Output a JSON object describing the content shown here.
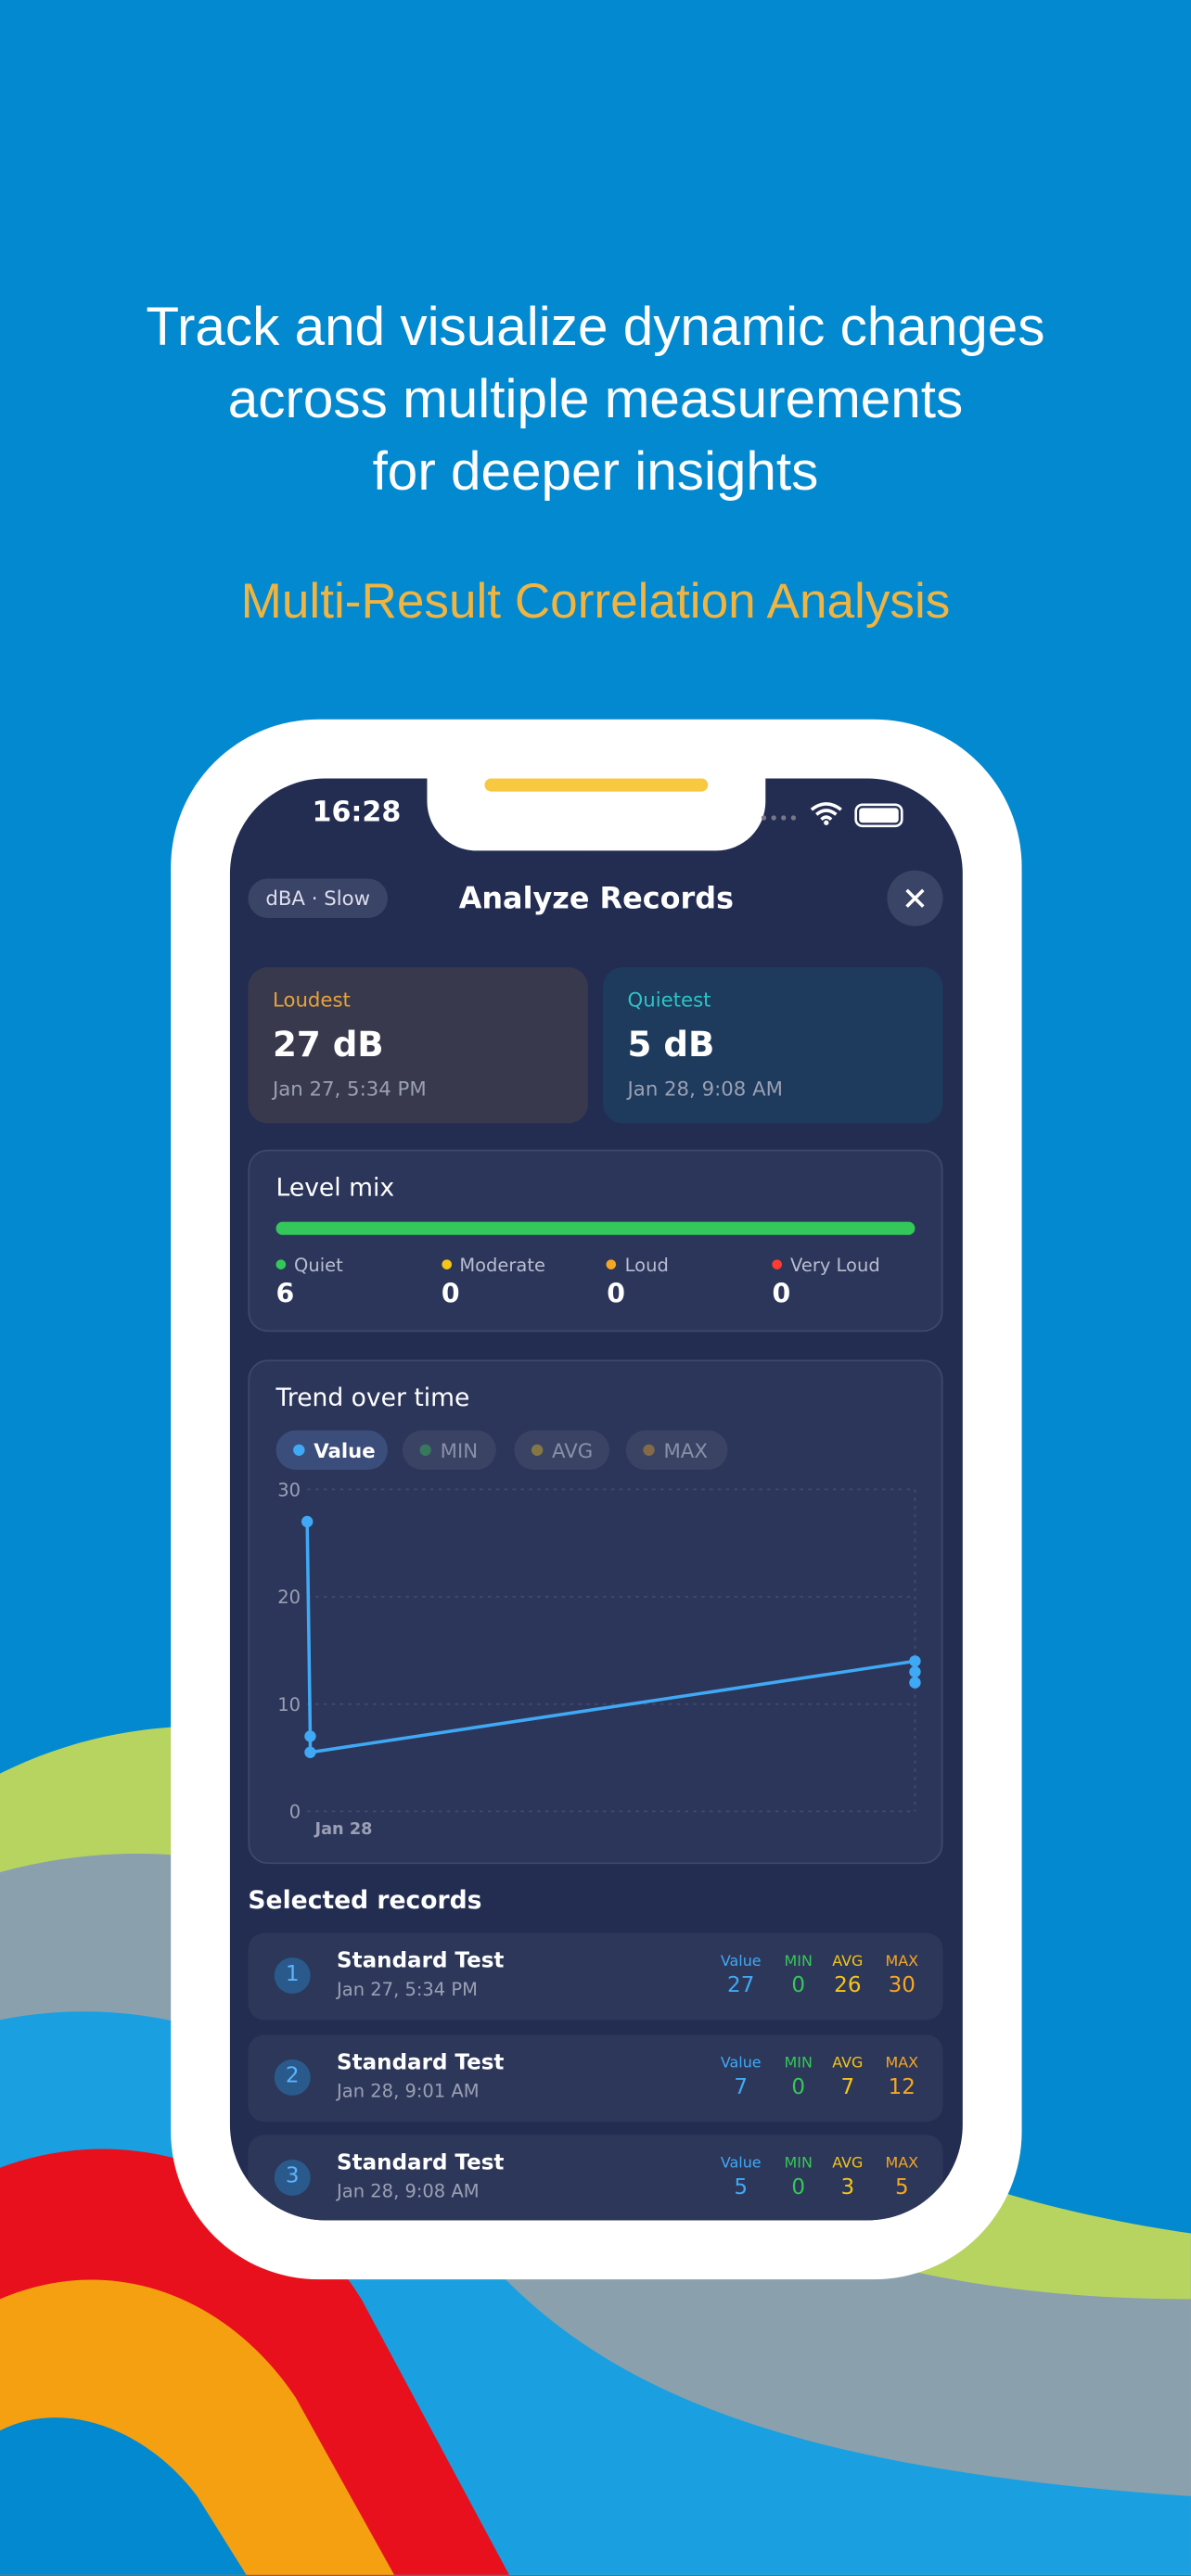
{
  "header": {
    "headline": [
      "Track and visualize dynamic changes",
      "across multiple measurements",
      "for deeper insights"
    ],
    "subtitle": "Multi-Result Correlation Analysis"
  },
  "status_bar": {
    "time": "16:28"
  },
  "app": {
    "mode": "dBA · Slow",
    "title": "Analyze Records",
    "loudest": {
      "label": "Loudest",
      "value": "27 dB",
      "date": "Jan 27, 5:34 PM"
    },
    "quietest": {
      "label": "Quietest",
      "value": "5 dB",
      "date": "Jan 28, 9:08 AM"
    },
    "level_mix": {
      "title": "Level mix",
      "items": [
        {
          "label": "Quiet",
          "count": 6,
          "color": "#34c759"
        },
        {
          "label": "Moderate",
          "count": 0,
          "color": "#f5c518"
        },
        {
          "label": "Loud",
          "count": 0,
          "color": "#f5a623"
        },
        {
          "label": "Very Loud",
          "count": 0,
          "color": "#ff3b30"
        }
      ]
    },
    "records": {
      "title": "Selected records",
      "columns": [
        "Value",
        "MIN",
        "AVG",
        "MAX"
      ],
      "column_colors": [
        "#3fa9f5",
        "#35c759",
        "#f5c518",
        "#f5a623"
      ],
      "items": [
        {
          "index": 1,
          "name": "Standard Test",
          "date": "Jan 27, 5:34 PM",
          "stats": [
            27,
            0,
            26,
            30
          ]
        },
        {
          "index": 2,
          "name": "Standard Test",
          "date": "Jan 28, 9:01 AM",
          "stats": [
            7,
            0,
            7,
            12
          ]
        },
        {
          "index": 3,
          "name": "Standard Test",
          "date": "Jan 28, 9:08 AM",
          "stats": [
            5,
            0,
            3,
            5
          ]
        }
      ]
    }
  },
  "chart_data": {
    "type": "line",
    "title": "Trend over time",
    "toggles": [
      {
        "name": "Value",
        "active": true,
        "color": "#3fa9f5"
      },
      {
        "name": "MIN",
        "active": false,
        "color": "#35c759"
      },
      {
        "name": "AVG",
        "active": false,
        "color": "#f5c518"
      },
      {
        "name": "MAX",
        "active": false,
        "color": "#f5a623"
      }
    ],
    "x": [
      0,
      0.5,
      0.5,
      100,
      100,
      100
    ],
    "xlim": [
      0,
      100
    ],
    "xticks": [
      {
        "value": 6,
        "label": "Jan 28"
      }
    ],
    "series": [
      {
        "name": "Value",
        "color": "#3fa9f5",
        "values": [
          27,
          7,
          5.5,
          14,
          13,
          12
        ]
      }
    ],
    "ylim": [
      0,
      30
    ],
    "yticks": [
      0,
      10,
      20,
      30
    ],
    "grid": true
  }
}
